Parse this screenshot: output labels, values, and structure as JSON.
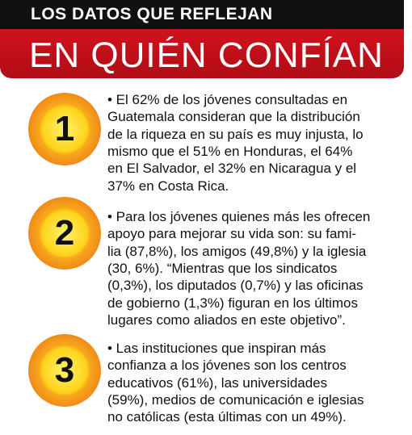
{
  "header": {
    "kicker": "LOS DATOS QUE REFLEJAN",
    "title": "EN QUIÉN CONFÍAN"
  },
  "items": [
    {
      "number": "1",
      "lines": [
        "• El 62% de los jóvenes consultadas en",
        "Guatemala consideran que la distribución",
        "de la riqueza en su país es muy injusta, lo",
        "mismo que el 51% en Honduras, el 64%",
        "en El Salvador, el 32% en Nicaragua y el",
        "37% en Costa Rica."
      ]
    },
    {
      "number": "2",
      "lines": [
        "• Para los jóvenes quienes más les ofrecen",
        "apoyo para mejorar su vida son: su fami-",
        "lia (87,8%), los amigos (49,8%) y la iglesia",
        "(30, 6%). “Mientras que los sindicatos",
        "(0,3%), los diputados (0,7%) y las oficinas",
        "de gobierno (1,3%) figuran en los últimos",
        "lugares como aliados en este objetivo”."
      ]
    },
    {
      "number": "3",
      "lines": [
        "• Las instituciones que inspiran más",
        "confianza a los jóvenes son los centros",
        "educativos (61%), las universidades",
        "(59%), medios de comunicación e iglesias",
        "no católicas (esta últimas con un 49%)."
      ]
    }
  ]
}
